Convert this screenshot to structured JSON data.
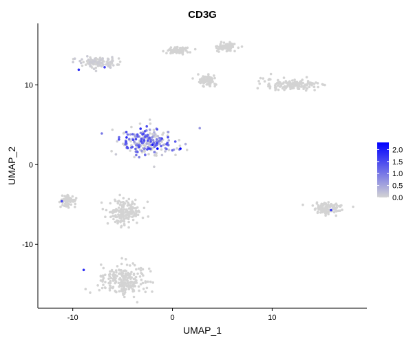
{
  "chart_data": {
    "type": "scatter",
    "title": "CD3G",
    "xlabel": "UMAP_1",
    "ylabel": "UMAP_2",
    "xlim": [
      -13.5,
      19.5
    ],
    "ylim": [
      -18.0,
      17.7
    ],
    "x_ticks": [
      -10,
      0,
      10
    ],
    "x_tick_labels": [
      "-10",
      "0",
      "10"
    ],
    "y_ticks": [
      -10,
      0,
      10
    ],
    "y_tick_labels": [
      "-10",
      "0",
      "10"
    ],
    "grid": false,
    "legend": {
      "placement": "right",
      "type": "continuous-colorbar",
      "min": 0,
      "max": 2.3,
      "ticks": [
        0.0,
        0.5,
        1.0,
        1.5,
        2.0
      ],
      "tick_labels": [
        "0.0",
        "0.5",
        "1.0",
        "1.5",
        "2.0"
      ]
    },
    "color_low": "#d3d3d3",
    "color_high": "#0000ff",
    "clusters": [
      {
        "center": [
          -2.5,
          2.8
        ],
        "spread": [
          2.5,
          1.6
        ],
        "expression_mean": 0.8
      },
      {
        "center": [
          -4.8,
          -6.0
        ],
        "spread": [
          1.4,
          1.6
        ],
        "expression_mean": 0.0
      },
      {
        "center": [
          -5.0,
          -14.5
        ],
        "spread": [
          2.0,
          1.8
        ],
        "expression_mean": 0.0
      },
      {
        "center": [
          -7.5,
          12.8
        ],
        "spread": [
          2.0,
          0.6
        ],
        "expression_mean": 0.05
      },
      {
        "center": [
          12.0,
          10.0
        ],
        "spread": [
          2.5,
          0.7
        ],
        "expression_mean": 0.0
      },
      {
        "center": [
          3.5,
          10.5
        ],
        "spread": [
          0.8,
          0.6
        ],
        "expression_mean": 0.0
      },
      {
        "center": [
          0.5,
          14.3
        ],
        "spread": [
          1.0,
          0.4
        ],
        "expression_mean": 0.0
      },
      {
        "center": [
          5.5,
          14.8
        ],
        "spread": [
          0.8,
          0.5
        ],
        "expression_mean": 0.0
      },
      {
        "center": [
          -10.5,
          -4.5
        ],
        "spread": [
          0.7,
          0.6
        ],
        "expression_mean": 0.0
      },
      {
        "center": [
          15.5,
          -5.5
        ],
        "spread": [
          1.4,
          0.7
        ],
        "expression_mean": 0.0
      }
    ],
    "highlighted_points": [
      {
        "x": -1.5,
        "y": 2.0,
        "value": 2.3
      },
      {
        "x": 0.8,
        "y": 2.0,
        "value": 2.2
      },
      {
        "x": -2.0,
        "y": 2.5,
        "value": 2.0
      },
      {
        "x": -3.2,
        "y": 4.5,
        "value": 1.8
      },
      {
        "x": -4.6,
        "y": 3.4,
        "value": 1.9
      },
      {
        "x": -9.4,
        "y": 11.9,
        "value": 1.8
      },
      {
        "x": -6.8,
        "y": 12.2,
        "value": 1.6
      },
      {
        "x": -8.9,
        "y": -13.2,
        "value": 1.8
      },
      {
        "x": 15.9,
        "y": -5.7,
        "value": 1.7
      },
      {
        "x": -11.1,
        "y": -4.6,
        "value": 1.5
      }
    ]
  }
}
